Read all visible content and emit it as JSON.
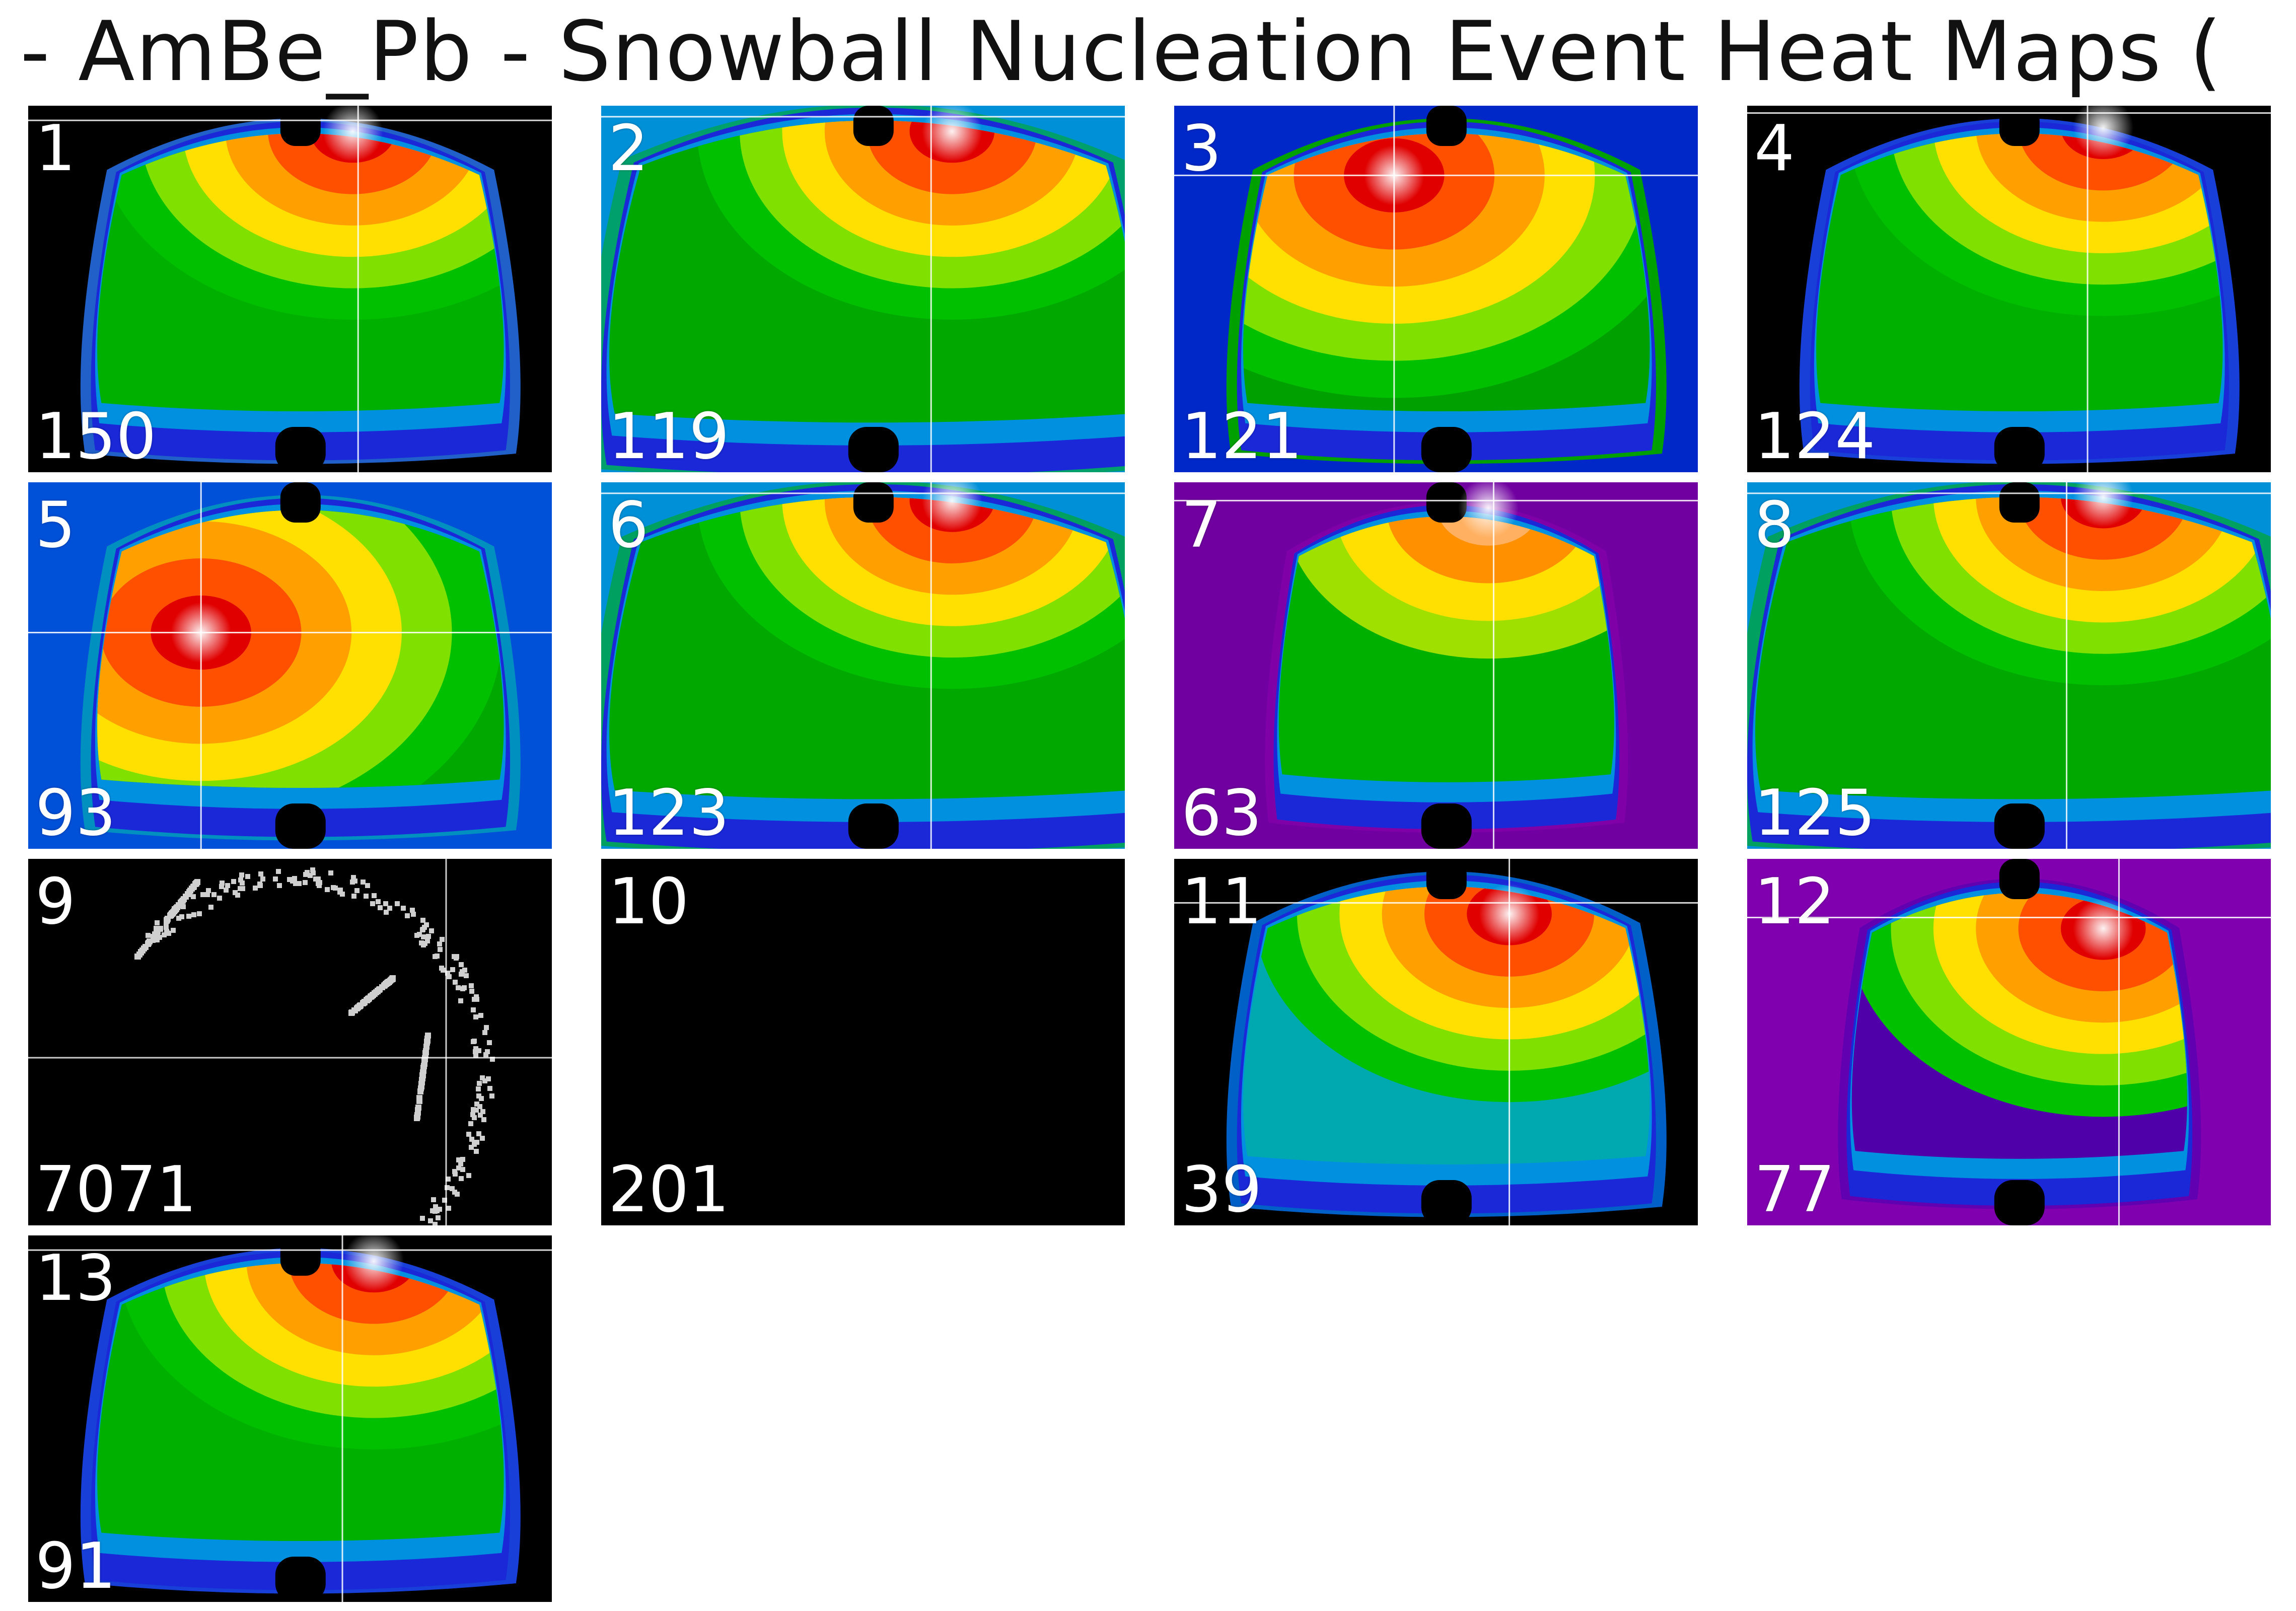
{
  "figure": {
    "title": "- AmBe_Pb - Snowball Nucleation Event Heat Maps ("
  },
  "chart_data": {
    "type": "heatmap",
    "title": "- AmBe_Pb - Snowball Nucleation Event Heat Maps (",
    "colormap": "nipy_spectral",
    "panels": [
      {
        "id": "1",
        "count": "150",
        "bg": "#000000",
        "outer": "#2060c8",
        "body": "#00b000",
        "hot": "#dd0000",
        "style": "bowl",
        "hotspot": [
          0.62,
          0.07
        ],
        "crosshair": [
          0.63,
          0.04
        ]
      },
      {
        "id": "2",
        "count": "119",
        "bg": "#0090d8",
        "outer": "#00a06c",
        "body": "#00a800",
        "hot": "#dd0000",
        "style": "wide",
        "hotspot": [
          0.67,
          0.07
        ],
        "crosshair": [
          0.63,
          0.03
        ]
      },
      {
        "id": "3",
        "count": "121",
        "bg": "#0028c8",
        "outer": "#00a000",
        "body": "#00a000",
        "hot": "#dd0000",
        "style": "side",
        "hotspot": [
          0.42,
          0.19
        ],
        "crosshair": [
          0.42,
          0.19
        ]
      },
      {
        "id": "4",
        "count": "124",
        "bg": "#000000",
        "outer": "#1840d8",
        "body": "#00b000",
        "hot": "#dd0000",
        "style": "bowl",
        "hotspot": [
          0.68,
          0.06
        ],
        "crosshair": [
          0.65,
          0.02
        ]
      },
      {
        "id": "5",
        "count": "93",
        "bg": "#0050d8",
        "outer": "#0090c0",
        "body": "#00a800",
        "hot": "#dd0000",
        "style": "left",
        "hotspot": [
          0.33,
          0.41
        ],
        "crosshair": [
          0.33,
          0.41
        ]
      },
      {
        "id": "6",
        "count": "123",
        "bg": "#0090d8",
        "outer": "#00a060",
        "body": "#00a800",
        "hot": "#dd0000",
        "style": "wide",
        "hotspot": [
          0.67,
          0.05
        ],
        "crosshair": [
          0.63,
          0.03
        ]
      },
      {
        "id": "7",
        "count": "63",
        "bg": "#7000a0",
        "outer": "#8000a8",
        "body": "#00b000",
        "hot": "#e08000",
        "style": "purple",
        "hotspot": [
          0.6,
          0.07
        ],
        "crosshair": [
          0.61,
          0.05
        ]
      },
      {
        "id": "8",
        "count": "125",
        "bg": "#0090d8",
        "outer": "#00a060",
        "body": "#00a800",
        "hot": "#dd0000",
        "style": "wide",
        "hotspot": [
          0.68,
          0.04
        ],
        "crosshair": [
          0.61,
          0.03
        ]
      },
      {
        "id": "9",
        "count": "7071",
        "bg": "#000000",
        "style": "ring"
      },
      {
        "id": "10",
        "count": "201",
        "bg": "#000000",
        "style": "empty"
      },
      {
        "id": "11",
        "count": "39",
        "bg": "#000000",
        "outer": "#0060c8",
        "body": "#00a8b0",
        "hot": "#dd0000",
        "style": "bowl",
        "hotspot": [
          0.64,
          0.15
        ],
        "crosshair": [
          0.64,
          0.12
        ]
      },
      {
        "id": "12",
        "count": "77",
        "bg": "#8000b0",
        "outer": "#6000b0",
        "body": "#5000a8",
        "hot": "#dd0000",
        "style": "purple",
        "hotspot": [
          0.68,
          0.19
        ],
        "crosshair": [
          0.71,
          0.16
        ]
      },
      {
        "id": "13",
        "count": "91",
        "bg": "#000000",
        "outer": "#1840d8",
        "body": "#00b000",
        "hot": "#dd0000",
        "style": "bowl",
        "hotspot": [
          0.66,
          0.07
        ],
        "crosshair": [
          0.6,
          0.04
        ]
      }
    ]
  }
}
